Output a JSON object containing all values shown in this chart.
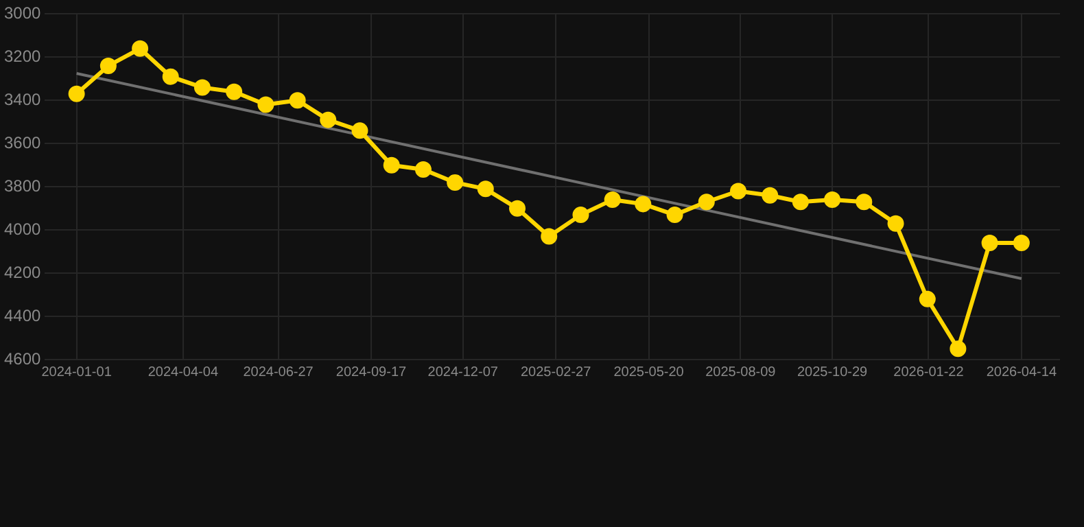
{
  "chart_data": {
    "type": "line",
    "x": [
      "2024-01-01",
      "2024-01-29",
      "2024-02-26",
      "2024-03-24",
      "2024-04-21",
      "2024-05-19",
      "2024-06-16",
      "2024-07-14",
      "2024-08-10",
      "2024-09-07",
      "2024-10-05",
      "2024-11-02",
      "2024-11-30",
      "2024-12-27",
      "2025-01-24",
      "2025-02-21",
      "2025-03-21",
      "2025-04-18",
      "2025-05-15",
      "2025-06-12",
      "2025-07-10",
      "2025-08-07",
      "2025-09-04",
      "2025-10-01",
      "2025-10-29",
      "2025-11-26",
      "2025-12-24",
      "2026-01-21",
      "2026-02-17",
      "2026-03-17",
      "2026-04-14"
    ],
    "series": [
      {
        "color": "#ffd600",
        "marker": "circle",
        "values": [
          3370,
          3240,
          3160,
          3290,
          3340,
          3360,
          3420,
          3400,
          3490,
          3540,
          3700,
          3720,
          3780,
          3810,
          3900,
          4030,
          3930,
          3860,
          3880,
          3930,
          3870,
          3820,
          3840,
          3870,
          3860,
          3870,
          3970,
          4320,
          4550,
          4060,
          4060
        ]
      },
      {
        "color": "#707070",
        "marker": "none",
        "x": [
          "2024-01-01",
          "2026-04-14"
        ],
        "values": [
          3275,
          4225
        ]
      }
    ],
    "xlim": [
      "2023-12-04",
      "2026-05-18"
    ],
    "xticks": [
      {
        "value": "2024-01-01",
        "label": "2024-01-01"
      },
      {
        "value": "2024-04-04",
        "label": "2024-04-04"
      },
      {
        "value": "2024-06-27",
        "label": "2024-06-27"
      },
      {
        "value": "2024-09-17",
        "label": "2024-09-17"
      },
      {
        "value": "2024-12-07",
        "label": "2024-12-07"
      },
      {
        "value": "2025-02-27",
        "label": "2025-02-27"
      },
      {
        "value": "2025-05-20",
        "label": "2025-05-20"
      },
      {
        "value": "2025-08-09",
        "label": "2025-08-09"
      },
      {
        "value": "2025-10-29",
        "label": "2025-10-29"
      },
      {
        "value": "2026-01-22",
        "label": "2026-01-22"
      },
      {
        "value": "2026-04-14",
        "label": "2026-04-14"
      }
    ],
    "ylim": [
      4600,
      3000
    ],
    "yticks": [
      3000,
      3200,
      3400,
      3600,
      3800,
      4000,
      4200,
      4400,
      4600
    ],
    "grid": true,
    "legend": false,
    "line_style": "solid"
  }
}
